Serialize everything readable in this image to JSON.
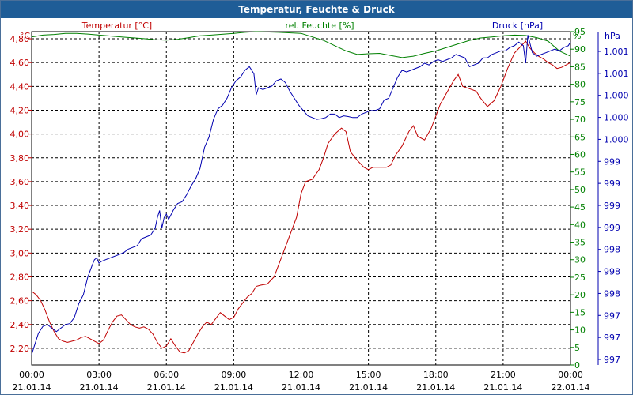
{
  "colors": {
    "title_bg": "#1f5d97",
    "temperature": "#c00000",
    "humidity": "#008000",
    "pressure": "#0000b0",
    "grid": "#000000"
  },
  "chart_data": {
    "type": "line",
    "title": "Temperatur, Feuchte & Druck",
    "grid": true,
    "x_ticks": [
      {
        "time": "00:00",
        "date": "21.01.14"
      },
      {
        "time": "03:00",
        "date": "21.01.14"
      },
      {
        "time": "06:00",
        "date": "21.01.14"
      },
      {
        "time": "09:00",
        "date": "21.01.14"
      },
      {
        "time": "12:00",
        "date": "21.01.14"
      },
      {
        "time": "15:00",
        "date": "21.01.14"
      },
      {
        "time": "18:00",
        "date": "21.01.14"
      },
      {
        "time": "21:00",
        "date": "21.01.14"
      },
      {
        "time": "00:00",
        "date": "22.01.14"
      }
    ],
    "x_range_hours": [
      0,
      24
    ],
    "axes": {
      "temperature": {
        "label": "Temperatur [°C]",
        "unit": "°C",
        "range": [
          2.06,
          4.86
        ],
        "ticks": [
          "2,20",
          "2,40",
          "2,60",
          "2,80",
          "3,00",
          "3,20",
          "3,40",
          "3,60",
          "3,80",
          "4,00",
          "4,20",
          "4,40",
          "4,60",
          "4,80"
        ]
      },
      "humidity": {
        "label": "rel. Feuchte [%]",
        "unit": "%",
        "range": [
          0,
          95
        ],
        "ticks": [
          "0",
          "5",
          "10",
          "15",
          "20",
          "25",
          "30",
          "35",
          "40",
          "45",
          "50",
          "55",
          "60",
          "65",
          "70",
          "75",
          "80",
          "85",
          "90",
          "95"
        ]
      },
      "pressure": {
        "label": "Druck [hPa]",
        "unit": "hPa",
        "ticks": [
          "997",
          "997",
          "997",
          "998",
          "998",
          "998",
          "999",
          "999",
          "999",
          "999",
          "1.000",
          "1.000",
          "1.000",
          "1.001",
          "1.001"
        ]
      }
    },
    "series": [
      {
        "name": "Temperatur [°C]",
        "axis": "temperature",
        "x_hours": [
          0,
          0.2,
          0.4,
          0.6,
          0.8,
          1.0,
          1.2,
          1.4,
          1.6,
          1.8,
          2.0,
          2.2,
          2.4,
          2.6,
          2.8,
          3.0,
          3.2,
          3.4,
          3.6,
          3.8,
          4.0,
          4.2,
          4.4,
          4.6,
          4.8,
          5.0,
          5.2,
          5.4,
          5.6,
          5.8,
          6.0,
          6.2,
          6.4,
          6.6,
          6.8,
          7.0,
          7.2,
          7.4,
          7.6,
          7.8,
          8.0,
          8.2,
          8.4,
          8.6,
          8.8,
          9.0,
          9.2,
          9.4,
          9.6,
          9.8,
          10.0,
          10.2,
          10.5,
          10.8,
          11.0,
          11.2,
          11.5,
          11.8,
          12.0,
          12.2,
          12.5,
          12.8,
          13.0,
          13.2,
          13.5,
          13.8,
          14.0,
          14.2,
          14.5,
          14.8,
          15.0,
          15.2,
          15.5,
          15.8,
          16.0,
          16.2,
          16.5,
          16.8,
          17.0,
          17.2,
          17.5,
          17.8,
          18.0,
          18.2,
          18.5,
          18.8,
          19.0,
          19.2,
          19.5,
          19.8,
          20.0,
          20.3,
          20.6,
          20.9,
          21.2,
          21.5,
          21.8,
          22.0,
          22.2,
          22.4,
          22.6,
          22.8,
          23.0,
          23.2,
          23.4,
          23.6,
          23.8,
          24.0
        ],
        "values": [
          2.68,
          2.65,
          2.6,
          2.52,
          2.42,
          2.34,
          2.28,
          2.26,
          2.25,
          2.26,
          2.27,
          2.29,
          2.3,
          2.28,
          2.26,
          2.24,
          2.27,
          2.35,
          2.42,
          2.47,
          2.48,
          2.44,
          2.4,
          2.38,
          2.37,
          2.38,
          2.36,
          2.32,
          2.25,
          2.2,
          2.22,
          2.28,
          2.22,
          2.17,
          2.16,
          2.18,
          2.25,
          2.32,
          2.38,
          2.42,
          2.4,
          2.45,
          2.5,
          2.47,
          2.44,
          2.46,
          2.53,
          2.58,
          2.63,
          2.66,
          2.72,
          2.73,
          2.74,
          2.8,
          2.9,
          3.0,
          3.15,
          3.3,
          3.5,
          3.6,
          3.62,
          3.7,
          3.8,
          3.92,
          4.0,
          4.05,
          4.02,
          3.85,
          3.78,
          3.72,
          3.7,
          3.72,
          3.72,
          3.72,
          3.74,
          3.82,
          3.9,
          4.02,
          4.07,
          3.98,
          3.95,
          4.05,
          4.15,
          4.25,
          4.35,
          4.45,
          4.5,
          4.4,
          4.38,
          4.36,
          4.3,
          4.23,
          4.28,
          4.4,
          4.55,
          4.68,
          4.74,
          4.78,
          4.72,
          4.68,
          4.65,
          4.63,
          4.6,
          4.58,
          4.55,
          4.56,
          4.58,
          4.6
        ]
      },
      {
        "name": "rel. Feuchte [%]",
        "axis": "humidity",
        "x_hours": [
          0,
          0.5,
          1.0,
          1.5,
          2.0,
          2.5,
          3.0,
          4.0,
          5.0,
          5.5,
          6.0,
          6.5,
          7.0,
          7.5,
          8.0,
          9.0,
          9.5,
          10.0,
          11.0,
          12.0,
          12.5,
          13.0,
          13.5,
          14.0,
          14.5,
          15.0,
          15.5,
          16.0,
          16.5,
          17.0,
          17.5,
          18.0,
          18.5,
          19.0,
          19.5,
          20.0,
          20.5,
          21.0,
          21.5,
          22.0,
          22.5,
          23.0,
          23.5,
          24.0
        ],
        "values": [
          93.5,
          94.0,
          94.2,
          94.5,
          94.5,
          94.3,
          94.0,
          93.5,
          93.0,
          92.7,
          92.6,
          92.8,
          93.3,
          93.8,
          94.0,
          94.5,
          94.8,
          95.0,
          94.8,
          94.5,
          93.5,
          92.5,
          91.0,
          89.5,
          88.5,
          88.7,
          88.8,
          88.2,
          87.6,
          88.0,
          88.8,
          89.5,
          90.5,
          91.5,
          92.5,
          93.2,
          93.5,
          93.8,
          94.0,
          93.9,
          93.3,
          92.3,
          89.5,
          88.0
        ]
      },
      {
        "name": "Druck [hPa]",
        "axis": "pressure",
        "x_hours": [
          0,
          0.1,
          0.3,
          0.5,
          0.7,
          0.9,
          1.1,
          1.3,
          1.5,
          1.7,
          1.9,
          2.1,
          2.3,
          2.5,
          2.7,
          2.8,
          2.9,
          3.0,
          3.1,
          3.3,
          3.5,
          3.7,
          3.9,
          4.1,
          4.3,
          4.5,
          4.7,
          4.9,
          5.1,
          5.3,
          5.5,
          5.6,
          5.7,
          5.8,
          5.9,
          6.0,
          6.1,
          6.3,
          6.5,
          6.7,
          6.9,
          7.1,
          7.3,
          7.5,
          7.7,
          7.9,
          8.1,
          8.3,
          8.5,
          8.7,
          8.9,
          9.1,
          9.3,
          9.5,
          9.7,
          9.9,
          10.0,
          10.1,
          10.3,
          10.5,
          10.7,
          10.9,
          11.1,
          11.3,
          11.5,
          11.7,
          11.9,
          12.1,
          12.3,
          12.5,
          12.7,
          12.9,
          13.1,
          13.3,
          13.5,
          13.7,
          13.9,
          14.1,
          14.3,
          14.5,
          14.7,
          14.9,
          15.1,
          15.3,
          15.5,
          15.7,
          15.9,
          16.1,
          16.3,
          16.5,
          16.7,
          16.9,
          17.1,
          17.3,
          17.5,
          17.7,
          17.9,
          18.1,
          18.3,
          18.5,
          18.7,
          18.9,
          19.1,
          19.3,
          19.5,
          19.7,
          19.9,
          20.1,
          20.3,
          20.5,
          20.7,
          20.9,
          21.1,
          21.3,
          21.5,
          21.7,
          21.9,
          22.0,
          22.1,
          22.3,
          22.5,
          22.7,
          22.9,
          23.1,
          23.3,
          23.5,
          23.7,
          23.9,
          24.0
        ],
        "values": [
          3,
          5,
          9,
          11,
          11.5,
          10.5,
          9.5,
          10.5,
          11.5,
          11.8,
          13.5,
          17.5,
          20,
          25,
          28.5,
          30,
          30.5,
          29,
          29.5,
          30,
          30.5,
          31,
          31.5,
          32,
          33,
          33.5,
          34,
          36,
          36.5,
          37,
          39,
          42,
          44,
          39,
          42,
          43,
          41.5,
          44,
          46,
          46.5,
          48.5,
          51,
          53,
          56,
          62,
          65,
          70,
          73,
          74,
          76,
          79,
          81,
          82,
          84,
          85,
          83,
          77,
          79,
          78.5,
          79,
          79.5,
          81,
          81.5,
          80.5,
          78,
          76,
          74,
          72.5,
          71,
          70.5,
          70,
          70.2,
          70.5,
          71.5,
          71.5,
          70.5,
          71,
          70.8,
          70.5,
          70.5,
          71.5,
          72,
          72.5,
          72.5,
          73,
          75.5,
          76,
          79,
          82,
          84,
          83.5,
          84,
          84.5,
          85,
          86,
          85.5,
          86.5,
          87,
          86.5,
          87,
          87.5,
          88.5,
          88,
          87.5,
          85,
          85.5,
          86,
          87.5,
          87.5,
          88.5,
          89,
          89.5,
          89.5,
          90.5,
          91,
          92,
          91,
          86,
          94,
          89,
          88,
          88.5,
          89,
          89.5,
          90,
          89.5,
          90.5,
          91,
          92
        ]
      }
    ]
  }
}
